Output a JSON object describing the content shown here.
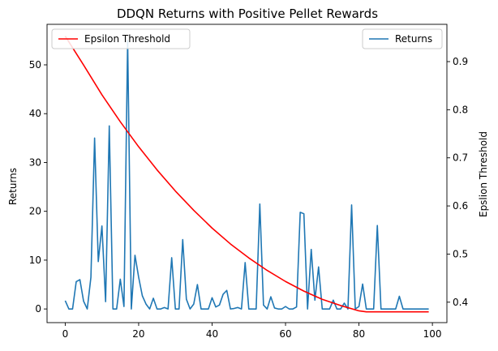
{
  "chart_data": {
    "type": "line",
    "title": "DDQN Returns with Positive Pellet Rewards",
    "xlabel": "",
    "ylabel_left": "Returns",
    "ylabel_right": "Epslion Threshold",
    "xlim": [
      -4.95,
      103.95
    ],
    "ylim_left": [
      -2.8,
      58.3
    ],
    "ylim_right": [
      0.3575,
      0.9775
    ],
    "x_ticks": [
      0,
      20,
      40,
      60,
      80,
      100
    ],
    "y_left_ticks": [
      0,
      10,
      20,
      30,
      40,
      50
    ],
    "y_right_ticks": [
      0.4,
      0.5,
      0.6,
      0.7,
      0.8,
      0.9
    ],
    "grid": false,
    "series": [
      {
        "name": "Returns",
        "axis": "left",
        "color": "#1f77b4",
        "x": [
          0,
          1,
          2,
          3,
          4,
          5,
          6,
          7,
          8,
          9,
          10,
          11,
          12,
          13,
          14,
          15,
          16,
          17,
          18,
          19,
          20,
          21,
          22,
          23,
          24,
          25,
          26,
          27,
          28,
          29,
          30,
          31,
          32,
          33,
          34,
          35,
          36,
          37,
          38,
          39,
          40,
          41,
          42,
          43,
          44,
          45,
          46,
          47,
          48,
          49,
          50,
          51,
          52,
          53,
          54,
          55,
          56,
          57,
          58,
          59,
          60,
          61,
          62,
          63,
          64,
          65,
          66,
          67,
          68,
          69,
          70,
          71,
          72,
          73,
          74,
          75,
          76,
          77,
          78,
          79,
          80,
          81,
          82,
          83,
          84,
          85,
          86,
          87,
          88,
          89,
          90,
          91,
          92,
          93,
          94,
          95,
          96,
          97,
          98,
          99
        ],
        "y": [
          1.7,
          0,
          0,
          5.6,
          6,
          1.6,
          0,
          6.5,
          35,
          9.7,
          17,
          1.5,
          37.5,
          0,
          0,
          6.1,
          0.5,
          55,
          0,
          11,
          6.5,
          2.7,
          1,
          0,
          2.2,
          0,
          0,
          0.3,
          0,
          10.5,
          0,
          0,
          14.2,
          2,
          0,
          1,
          5,
          0,
          0,
          0,
          2.3,
          0.4,
          0.8,
          3,
          3.8,
          0,
          0.1,
          0.3,
          0,
          9.5,
          0,
          0,
          0,
          21.5,
          0.8,
          0,
          2.5,
          0.2,
          0,
          0,
          0.5,
          0,
          0,
          0.4,
          19.8,
          19.5,
          0,
          12.2,
          1.8,
          8.6,
          0,
          0,
          0,
          1.8,
          0,
          0,
          1.2,
          0,
          21.3,
          0,
          0.5,
          5.1,
          0,
          0,
          0,
          17.1,
          0,
          0,
          0,
          0,
          0,
          2.6,
          0,
          0,
          0,
          0,
          0,
          0,
          0,
          0
        ]
      },
      {
        "name": "Epsilon Threshold",
        "axis": "right",
        "color": "#ff0000",
        "x": [
          0,
          5,
          10,
          15,
          20,
          25,
          30,
          35,
          40,
          45,
          50,
          55,
          60,
          65,
          70,
          75,
          80,
          81,
          82,
          85,
          90,
          95,
          99
        ],
        "y": [
          0.953,
          0.893,
          0.831,
          0.775,
          0.723,
          0.675,
          0.631,
          0.591,
          0.554,
          0.521,
          0.492,
          0.466,
          0.443,
          0.423,
          0.406,
          0.393,
          0.382,
          0.381,
          0.38,
          0.38,
          0.38,
          0.38,
          0.38
        ]
      }
    ],
    "legends": [
      {
        "position": "upper-left",
        "entries": [
          "Epsilon Threshold"
        ]
      },
      {
        "position": "upper-right",
        "entries": [
          "Returns"
        ]
      }
    ]
  }
}
